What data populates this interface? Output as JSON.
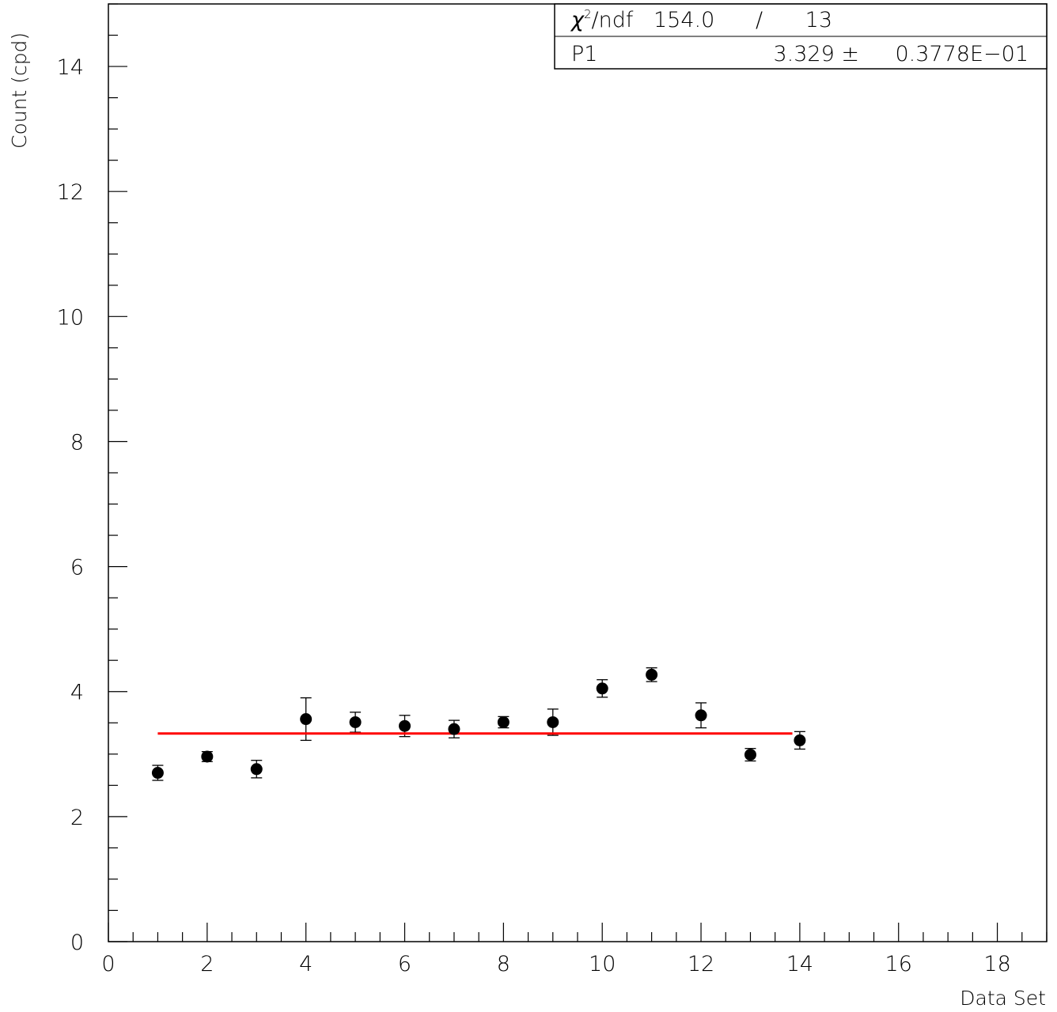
{
  "chart_data": {
    "type": "scatter",
    "xlabel": "Data Set",
    "ylabel": "Count (cpd)",
    "xlim": [
      0,
      19
    ],
    "ylim": [
      0,
      15
    ],
    "x_major_ticks": [
      0,
      2,
      4,
      6,
      8,
      10,
      12,
      14,
      16,
      18
    ],
    "y_major_ticks": [
      0,
      2,
      4,
      6,
      8,
      10,
      12,
      14
    ],
    "x_minor_step": 0.5,
    "y_minor_step": 0.5,
    "grid": false,
    "series": [
      {
        "marker": "filled-circle",
        "color": "#000000",
        "x": [
          1,
          2,
          3,
          4,
          5,
          6,
          7,
          8,
          9,
          10,
          11,
          12,
          13,
          14
        ],
        "y": [
          2.7,
          2.96,
          2.76,
          3.56,
          3.51,
          3.45,
          3.4,
          3.51,
          3.51,
          4.05,
          4.27,
          3.62,
          2.99,
          3.22
        ],
        "y_err": [
          0.12,
          0.08,
          0.14,
          0.34,
          0.16,
          0.17,
          0.14,
          0.09,
          0.21,
          0.14,
          0.11,
          0.2,
          0.1,
          0.14
        ]
      }
    ],
    "fit": {
      "color": "#ff0000",
      "x_range": [
        1,
        13.85
      ],
      "value": 3.329
    },
    "stats_box": {
      "position": "top-right",
      "row1_label_prefix": "χ",
      "row1_label_sup": "2",
      "row1_label_suffix": "/ndf",
      "row1_value": "154.0",
      "row1_sep": "/",
      "row1_ndf": "13",
      "row2_label": "P1",
      "row2_value": "3.329 ±",
      "row2_error": "0.3778E−01"
    }
  }
}
